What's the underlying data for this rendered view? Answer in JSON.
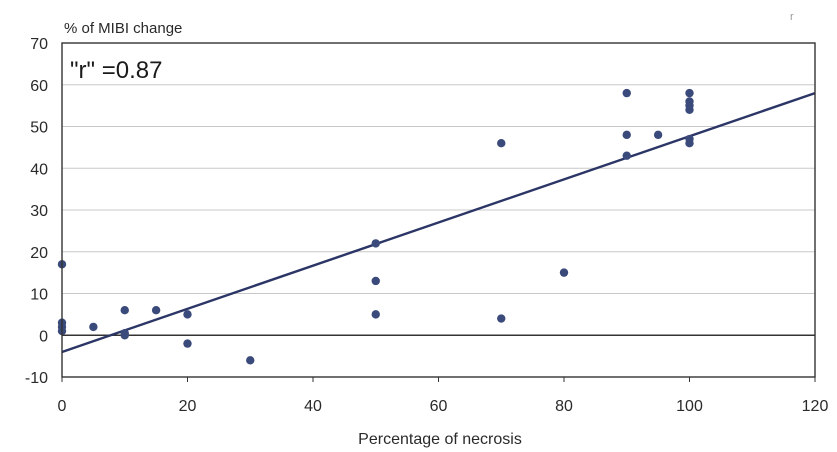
{
  "chart_data": {
    "type": "scatter",
    "title": "% of MIBI change",
    "xlabel": "Percentage of necrosis",
    "ylabel": "",
    "xlim": [
      0,
      120
    ],
    "ylim": [
      -10,
      70
    ],
    "xticks": [
      0,
      20,
      40,
      60,
      80,
      100,
      120
    ],
    "yticks": [
      -10,
      0,
      10,
      20,
      30,
      40,
      50,
      60,
      70
    ],
    "grid": "horizontal",
    "annotation": "\"r\" =0.87",
    "corner_mark": "r",
    "series": [
      {
        "points": [
          [
            0,
            17
          ],
          [
            0,
            3
          ],
          [
            0,
            2
          ],
          [
            0,
            1
          ],
          [
            5,
            2
          ],
          [
            10,
            6
          ],
          [
            10,
            0.5
          ],
          [
            10,
            0
          ],
          [
            15,
            6
          ],
          [
            20,
            5
          ],
          [
            20,
            -2
          ],
          [
            30,
            -6
          ],
          [
            50,
            22
          ],
          [
            50,
            13
          ],
          [
            50,
            5
          ],
          [
            70,
            46
          ],
          [
            70,
            4
          ],
          [
            80,
            15
          ],
          [
            90,
            58
          ],
          [
            90,
            48
          ],
          [
            90,
            43
          ],
          [
            95,
            48
          ],
          [
            100,
            58
          ],
          [
            100,
            56
          ],
          [
            100,
            55
          ],
          [
            100,
            54
          ],
          [
            100,
            47
          ],
          [
            100,
            46
          ]
        ]
      }
    ],
    "trendline": {
      "x": [
        0,
        120
      ],
      "y": [
        -4,
        58
      ]
    },
    "colors": {
      "points": "#3a4a7a",
      "line": "#2b3566",
      "axis": "#333333",
      "grid": "#c8c8c8"
    }
  }
}
